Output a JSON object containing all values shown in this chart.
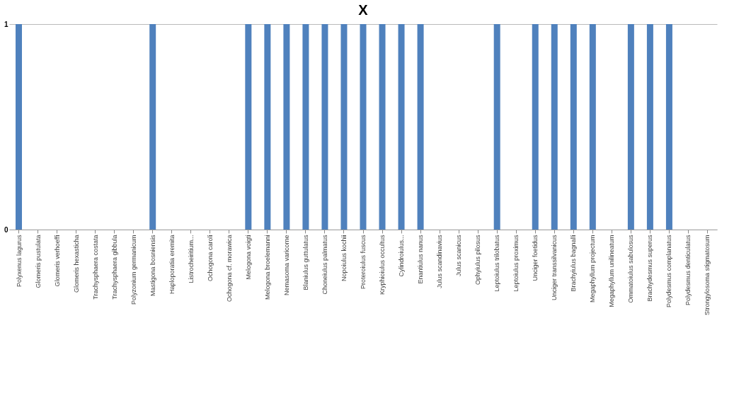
{
  "chart_data": {
    "type": "bar",
    "title": "X",
    "categories": [
      "Polyxenus lagurus",
      "Glomeris pustulata",
      "Glomeris verhoeffi",
      "Glomeris hexasticha",
      "Trachysphaera costata",
      "Trachysphaera gibbula",
      "Polyzonium germanicum",
      "Mastigona bosniensis",
      "Haploporatia eremita",
      "Listrocheiritium...",
      "Ochogona caroli",
      "Ochogona cf. morawica",
      "Melogona voigti",
      "Melogona broelemanni",
      "Nemasoma varicorne",
      "Blaniulus guttulatus",
      "Choneiulus palmatus",
      "Nopoiulus kochii",
      "Proteroiulus fuscus",
      "Kryphioiulus occultus",
      "Cylindroiulus...",
      "Enantiulus nanus",
      "Julus scandinavius",
      "Julus scanicus",
      "Ophyiulus pilosus",
      "Leptoiulus trilobatus",
      "Leptoiulus proximus",
      "Unciger foetidus",
      "Unciger transsilvanicus",
      "Brachyiulus bagnalli",
      "Megaphyllum projectum",
      "Megaphyllum unilineatum",
      "Ommatoiulus sabulosus",
      "Brachydesmus superus",
      "Polydesmus complanatus",
      "Polydesmus denticulatus",
      "Strongylosoma stigmatosum"
    ],
    "values": [
      1,
      0,
      0,
      0,
      0,
      0,
      0,
      1,
      0,
      0,
      0,
      0,
      1,
      1,
      1,
      1,
      1,
      1,
      1,
      1,
      1,
      1,
      0,
      0,
      0,
      1,
      0,
      1,
      1,
      1,
      1,
      0,
      1,
      1,
      1,
      0,
      0
    ],
    "color": "#4f81bd",
    "ylim": [
      0,
      1
    ],
    "yticks": [
      0,
      1
    ],
    "grid": "y"
  }
}
